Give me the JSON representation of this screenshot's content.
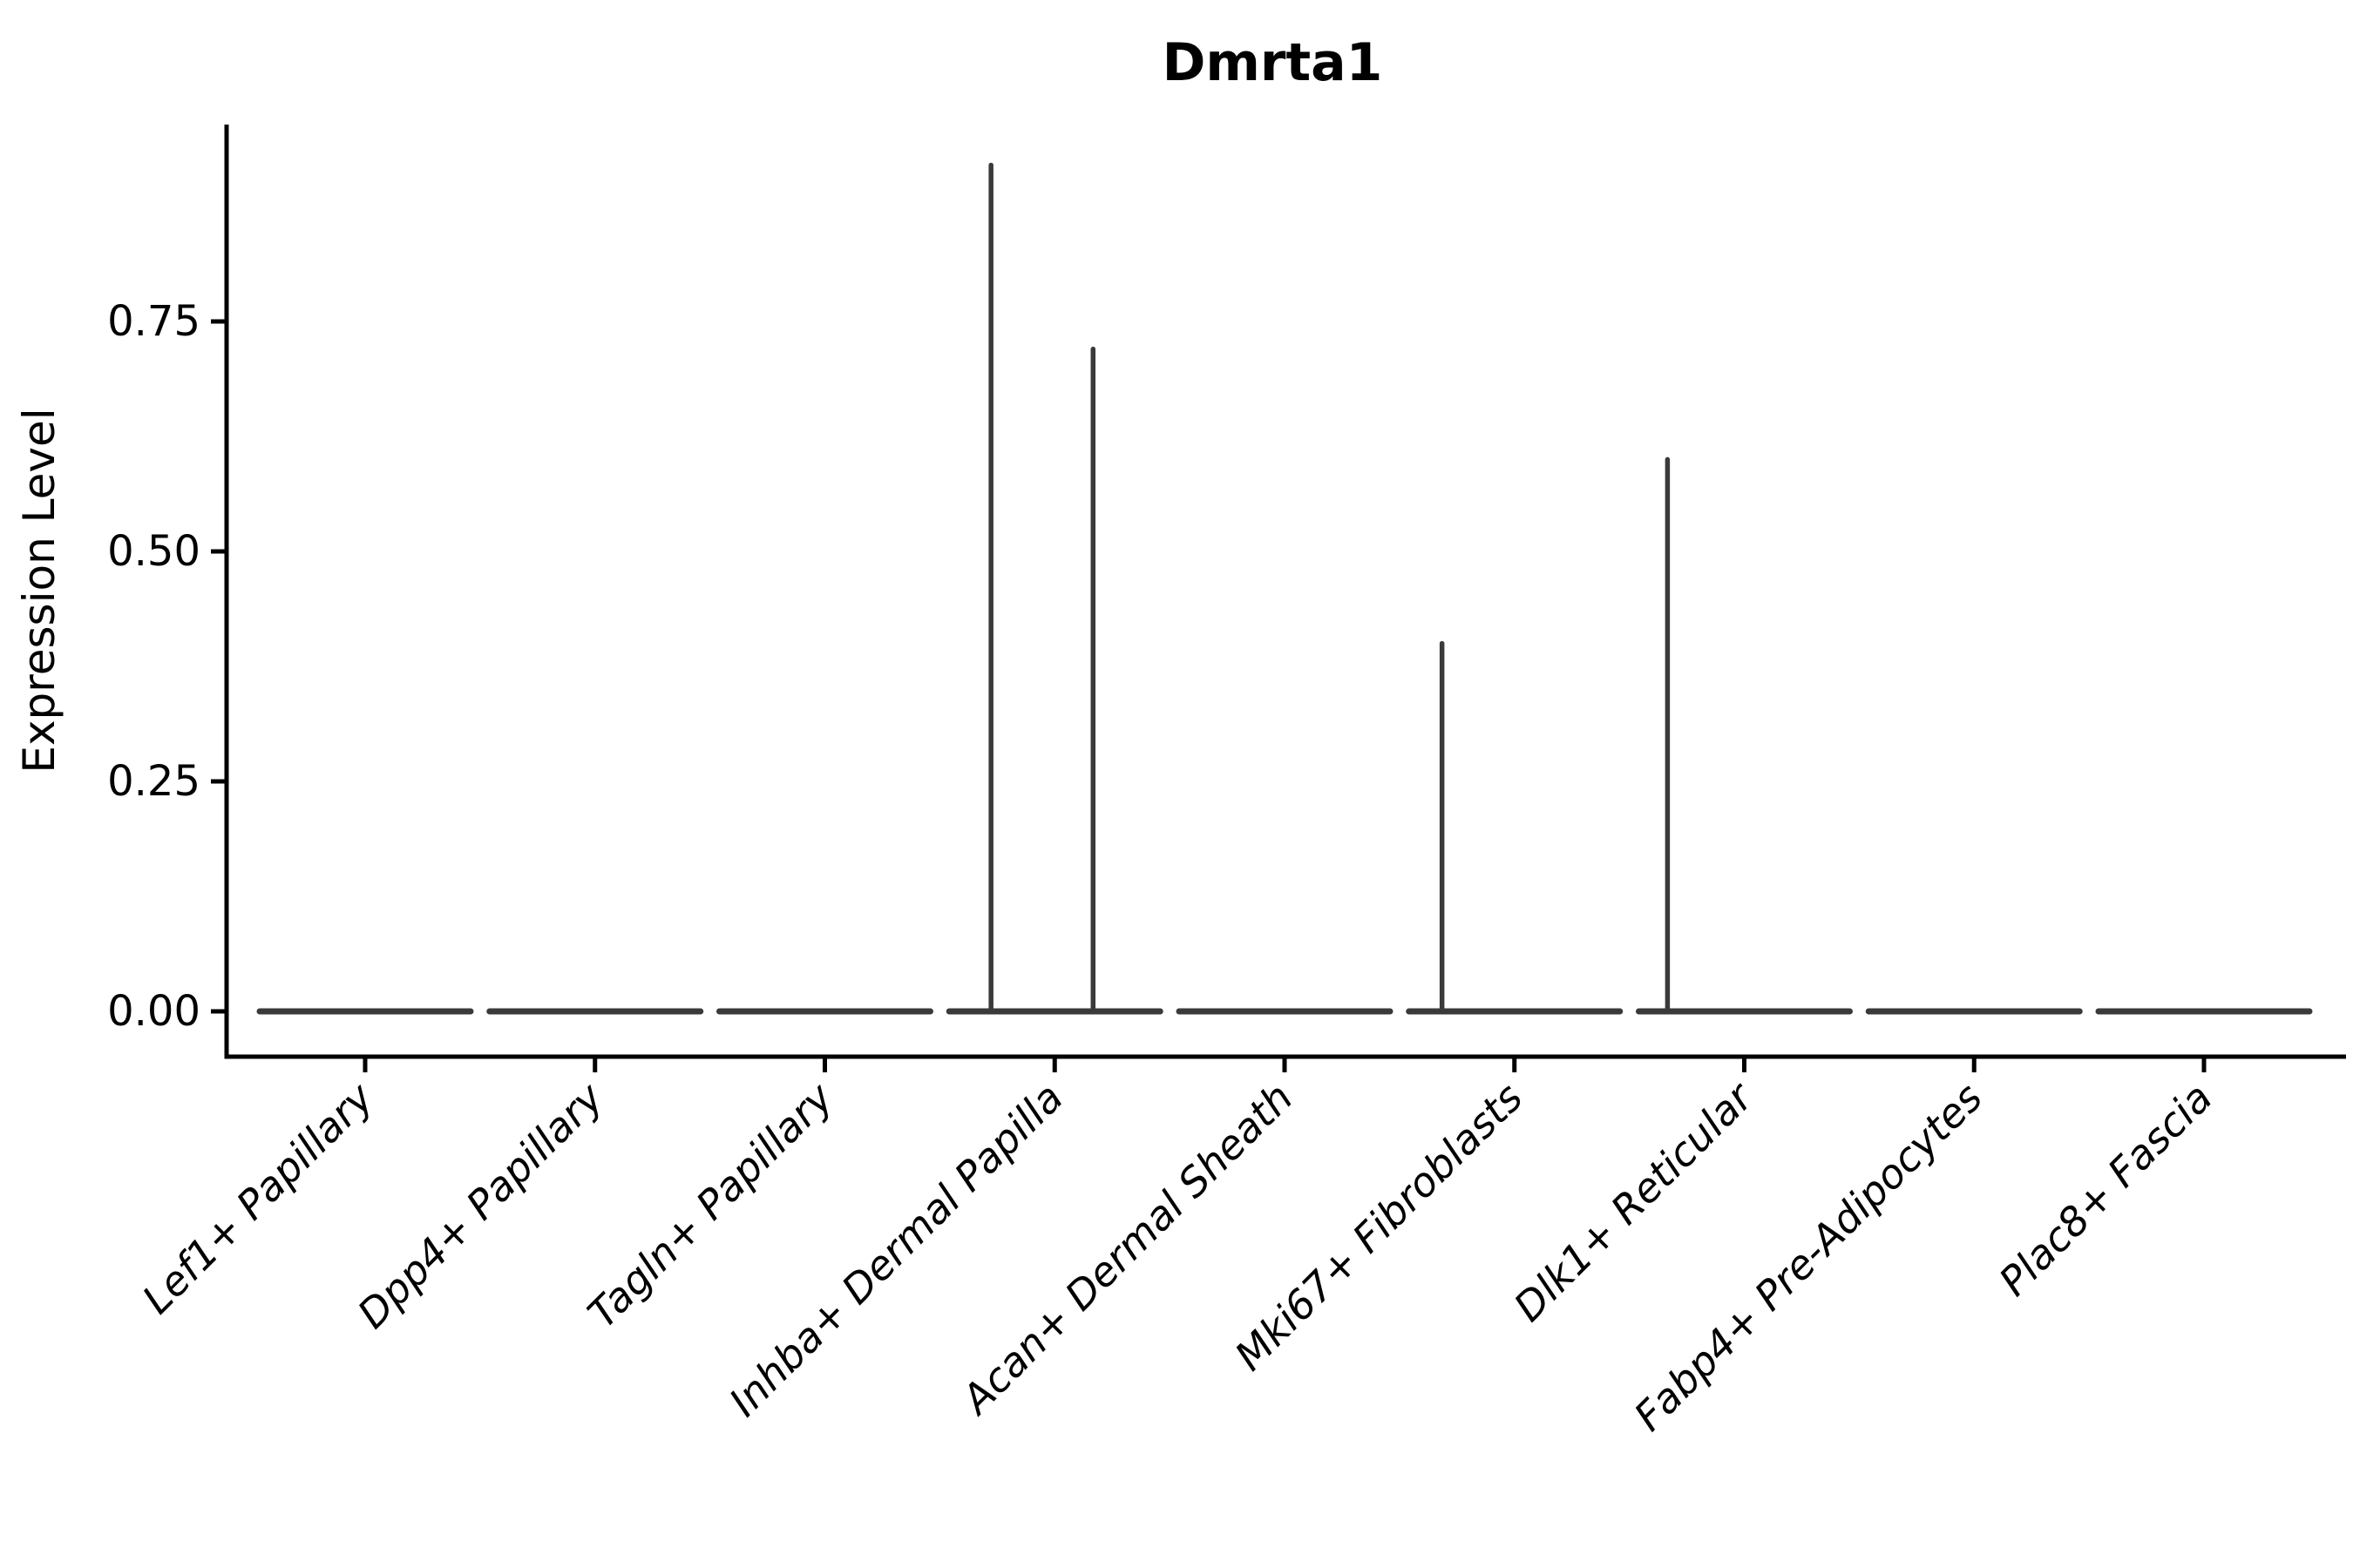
{
  "chart_data": {
    "type": "violin",
    "title": "Dmrta1",
    "xlabel": "",
    "ylabel": "Expression Level",
    "legend": "none",
    "grid": "off",
    "background": "#ffffff",
    "axis_color": "#000000",
    "violin_color": "#3a3a3a",
    "ylim": [
      -0.05,
      0.96
    ],
    "y_ticks": [
      {
        "value": 0.0,
        "label": "0.00"
      },
      {
        "value": 0.25,
        "label": "0.25"
      },
      {
        "value": 0.5,
        "label": "0.50"
      },
      {
        "value": 0.75,
        "label": "0.75"
      }
    ],
    "categories": [
      "Lef1+ Papillary",
      "Dpp4+ Papillary",
      "Tagln+ Papillary",
      "Inhba+ Dermal Papilla",
      "Acan+ Dermal Sheath",
      "Mki67+ Fibroblasts",
      "Dlk1+ Reticular",
      "Fabp4+ Pre-Adipocytes",
      "Plac8+ Fascia"
    ],
    "violins": [
      {
        "category": "Lef1+ Papillary",
        "baseline_value": 0,
        "max_expression": 0.0,
        "spikes": []
      },
      {
        "category": "Dpp4+ Papillary",
        "baseline_value": 0,
        "max_expression": 0.0,
        "spikes": []
      },
      {
        "category": "Tagln+ Papillary",
        "baseline_value": 0,
        "max_expression": 0.0,
        "spikes": []
      },
      {
        "category": "Inhba+ Dermal Papilla",
        "baseline_value": 0,
        "max_expression": 0.92,
        "spikes": [
          {
            "offset": -0.277,
            "value": 0.92
          },
          {
            "offset": 0.167,
            "value": 0.72
          }
        ]
      },
      {
        "category": "Acan+ Dermal Sheath",
        "baseline_value": 0,
        "max_expression": 0.0,
        "spikes": []
      },
      {
        "category": "Mki67+ Fibroblasts",
        "baseline_value": 0,
        "max_expression": 0.4,
        "spikes": [
          {
            "offset": -0.315,
            "value": 0.4
          }
        ]
      },
      {
        "category": "Dlk1+ Reticular",
        "baseline_value": 0,
        "max_expression": 0.6,
        "spikes": [
          {
            "offset": -0.334,
            "value": 0.6
          }
        ]
      },
      {
        "category": "Fabp4+ Pre-Adipocytes",
        "baseline_value": 0,
        "max_expression": 0.0,
        "spikes": []
      },
      {
        "category": "Plac8+ Fascia",
        "baseline_value": 0,
        "max_expression": 0.0,
        "spikes": []
      }
    ]
  }
}
